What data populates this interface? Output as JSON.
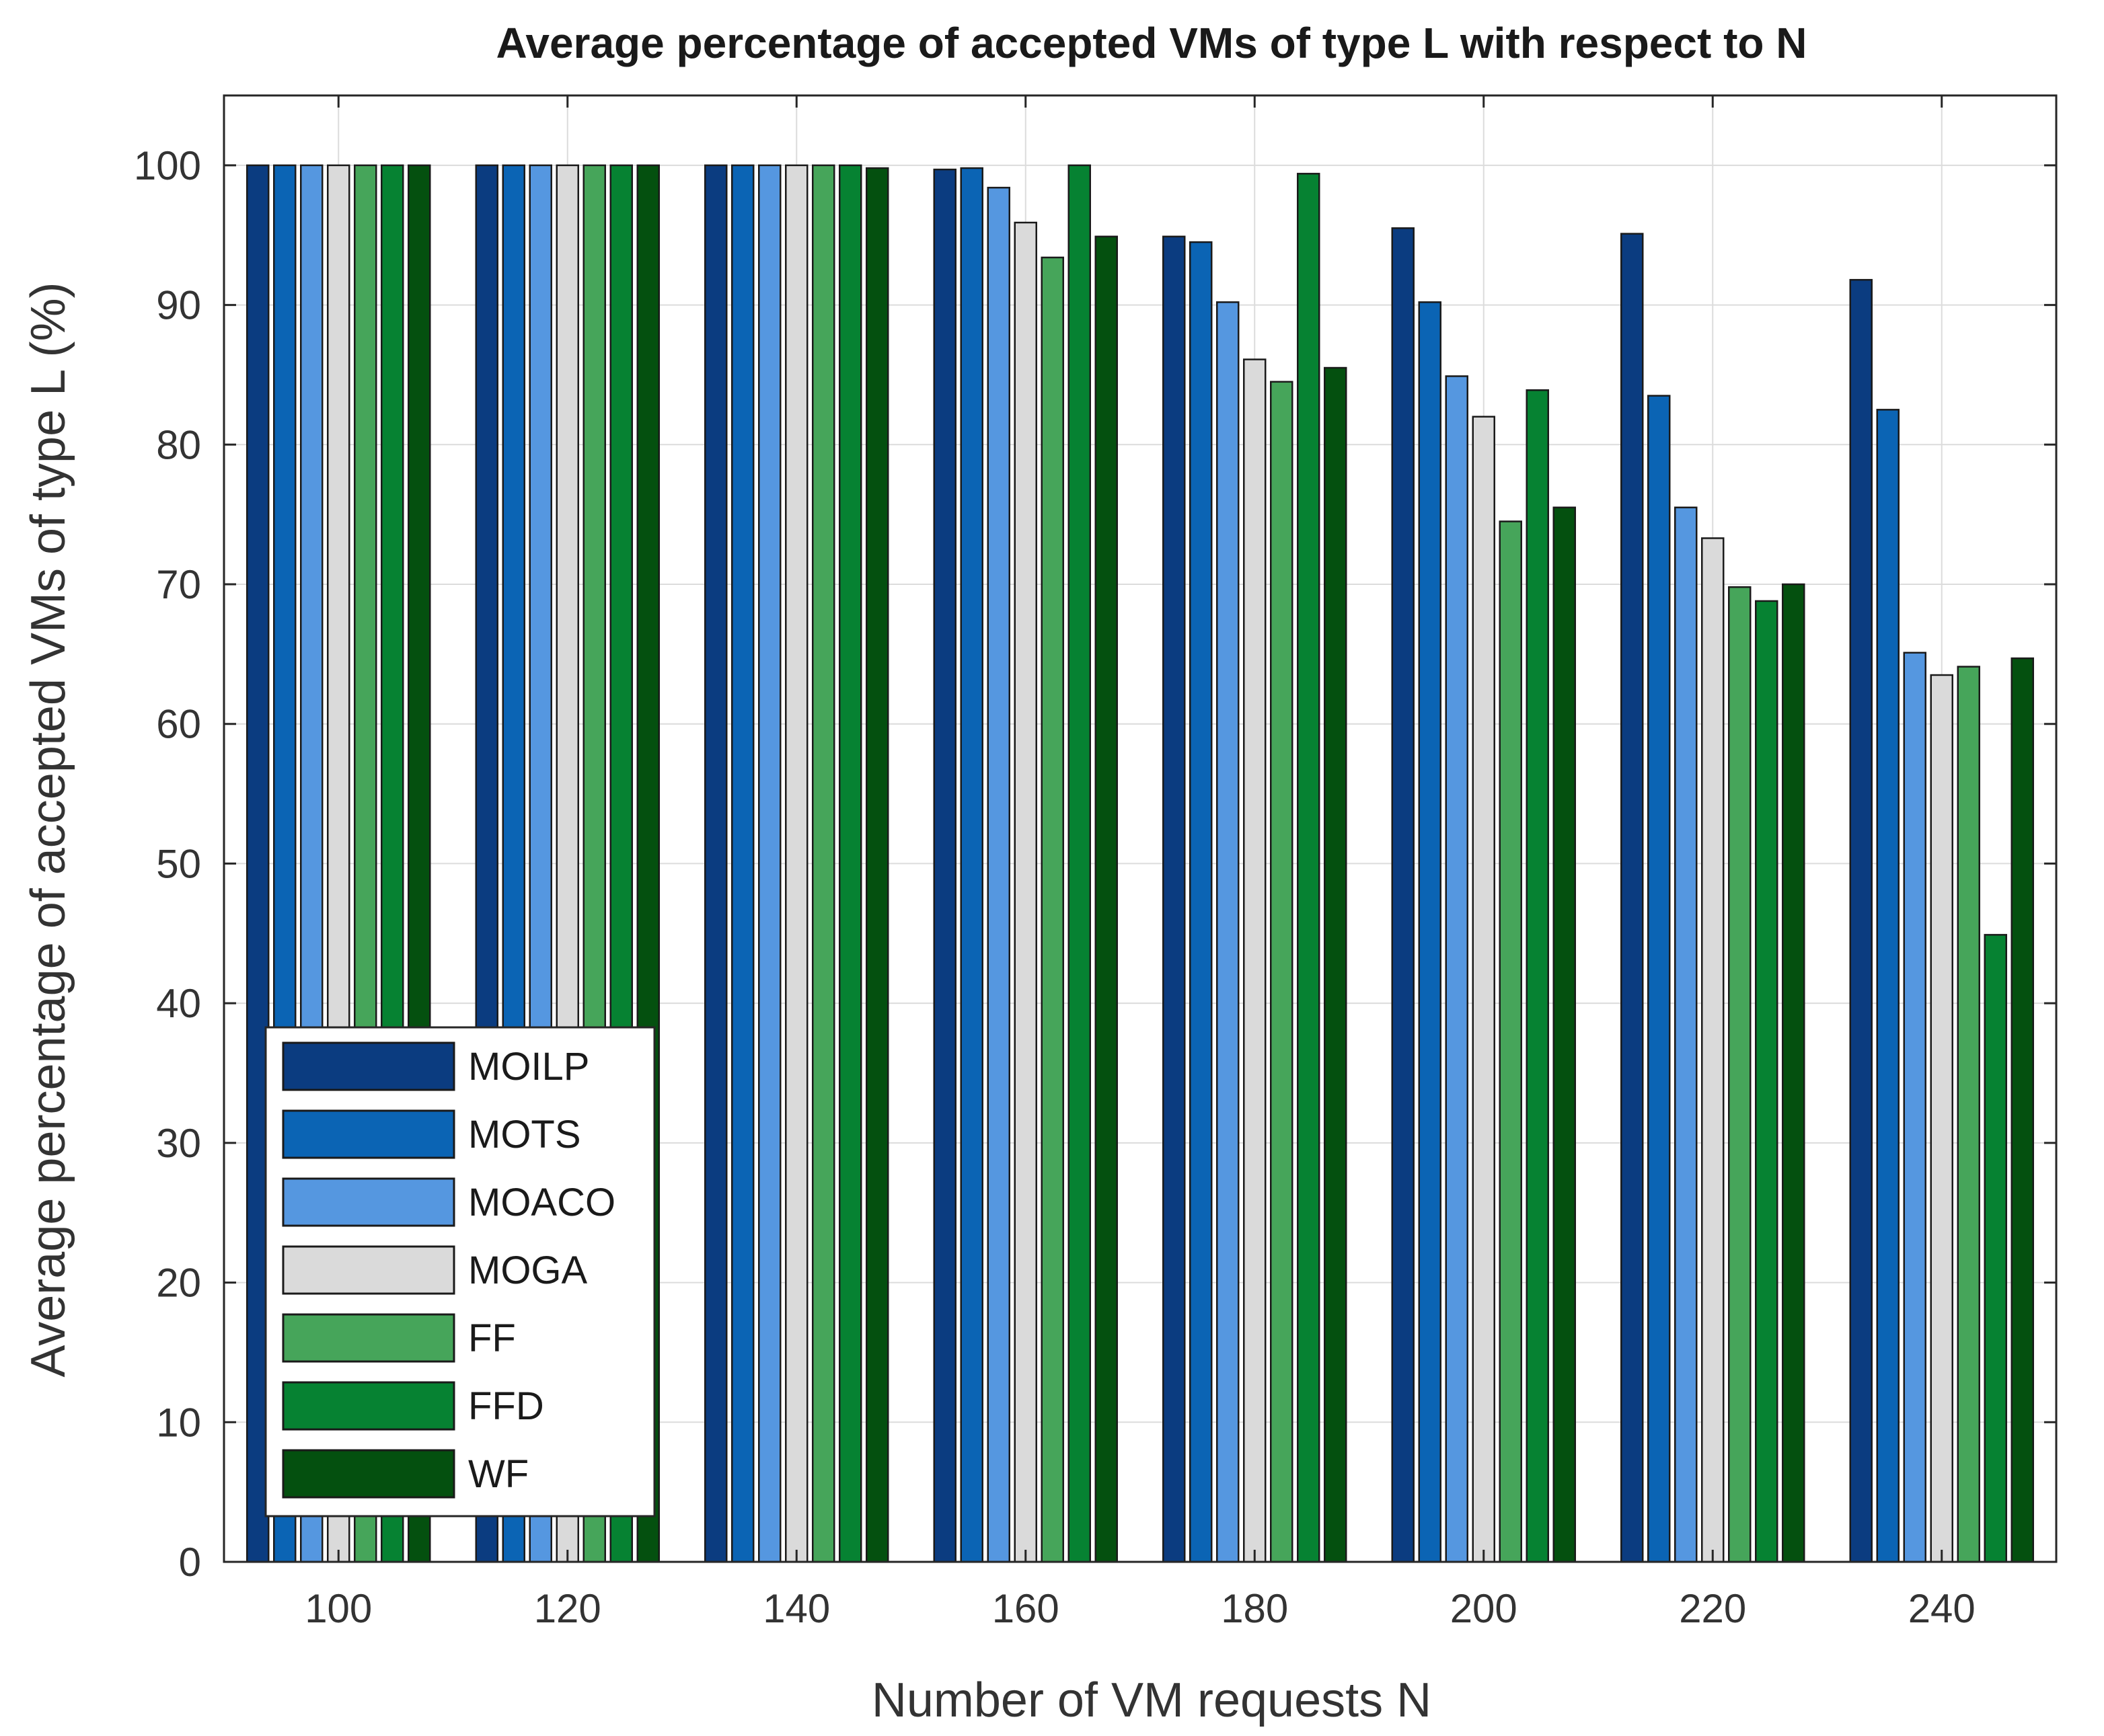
{
  "chart_data": {
    "type": "bar",
    "title": "Average percentage of accepted VMs of type L with respect to N",
    "xlabel": "Number of VM requests N",
    "ylabel": "Average percentage of accepted VMs of type L (%)",
    "ylim": [
      0,
      105
    ],
    "yticks": [
      0,
      10,
      20,
      30,
      40,
      50,
      60,
      70,
      80,
      90,
      100
    ],
    "grid": true,
    "legend_position": "bottom-left",
    "categories": [
      "100",
      "120",
      "140",
      "160",
      "180",
      "200",
      "220",
      "240"
    ],
    "series": [
      {
        "name": "MOILP",
        "color": "#0b3c80",
        "values": [
          100,
          100,
          100,
          99.7,
          94.9,
          95.5,
          95.1,
          91.8
        ]
      },
      {
        "name": "MOTS",
        "color": "#0b64b4",
        "values": [
          100,
          100,
          100,
          99.8,
          94.5,
          90.2,
          83.5,
          82.5
        ]
      },
      {
        "name": "MOACO",
        "color": "#5597e0",
        "values": [
          100,
          100,
          100,
          98.4,
          90.2,
          84.9,
          75.5,
          65.1
        ]
      },
      {
        "name": "MOGA",
        "color": "#dadada",
        "values": [
          100,
          100,
          100,
          95.9,
          86.1,
          82.0,
          73.3,
          63.5
        ]
      },
      {
        "name": "FF",
        "color": "#46a55a",
        "values": [
          100,
          100,
          100,
          93.4,
          84.5,
          74.5,
          69.8,
          64.1
        ]
      },
      {
        "name": "FFD",
        "color": "#068232",
        "values": [
          100,
          100,
          100,
          100,
          99.4,
          83.9,
          68.8,
          44.9
        ]
      },
      {
        "name": "WF",
        "color": "#04500f",
        "values": [
          100,
          100,
          99.8,
          94.9,
          85.5,
          75.5,
          70.0,
          64.7
        ]
      }
    ]
  }
}
